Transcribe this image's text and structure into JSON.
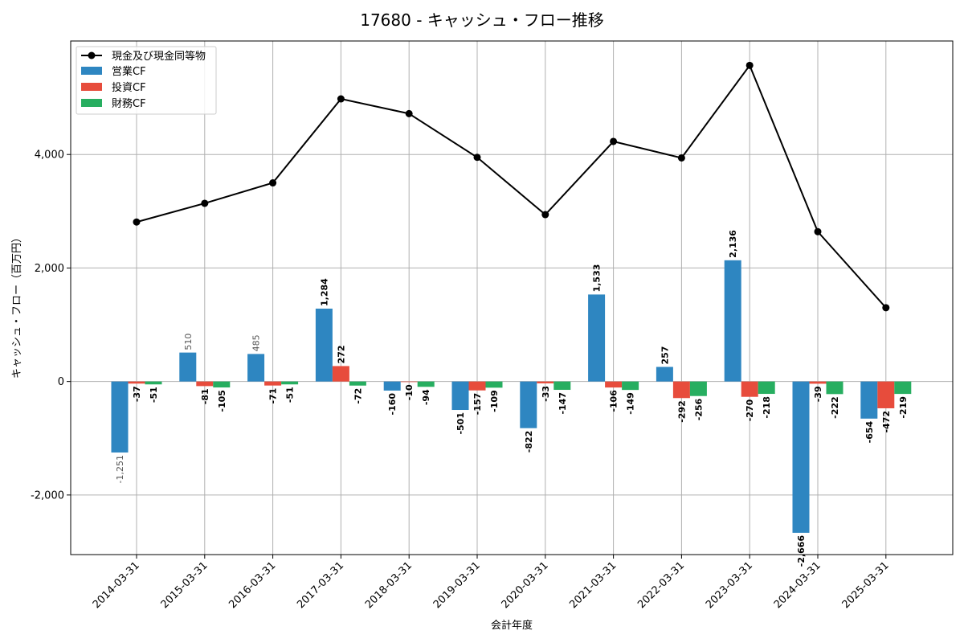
{
  "chart_data": {
    "type": "bar",
    "title": "17680 - キャッシュ・フロー推移",
    "xlabel": "会計年度",
    "ylabel": "キャッシュ・フロー（百万円）",
    "categories": [
      "2014-03-31",
      "2015-03-31",
      "2016-03-31",
      "2017-03-31",
      "2018-03-31",
      "2019-03-31",
      "2020-03-31",
      "2021-03-31",
      "2022-03-31",
      "2023-03-31",
      "2024-03-31",
      "2025-03-31"
    ],
    "ylim": [
      -3050,
      6000
    ],
    "yticks": [
      -2000,
      0,
      2000,
      4000
    ],
    "ytick_labels": [
      "-2,000",
      "0",
      "2,000",
      "4,000"
    ],
    "grid": true,
    "legend_position": "top-left",
    "series": [
      {
        "name": "現金及び現金同等物",
        "kind": "line",
        "color": "#000000",
        "values": [
          2810,
          3140,
          3500,
          4980,
          4720,
          3950,
          2940,
          4230,
          3940,
          5570,
          2640,
          1300
        ]
      },
      {
        "name": "営業CF",
        "kind": "bar",
        "color": "#2e86c1",
        "values": [
          -1251,
          510,
          485,
          1284,
          -160,
          -501,
          -822,
          1533,
          257,
          2136,
          -2666,
          -654
        ],
        "labels": [
          "-1,251",
          "510",
          "485",
          "1,284",
          "-160",
          "-501",
          "-822",
          "1,533",
          "257",
          "2,136",
          "-2,666",
          "-654"
        ]
      },
      {
        "name": "投資CF",
        "kind": "bar",
        "color": "#e74c3c",
        "values": [
          -37,
          -81,
          -71,
          272,
          -10,
          -157,
          -33,
          -106,
          -292,
          -270,
          -39,
          -472
        ],
        "labels": [
          "-37",
          "-81",
          "-71",
          "272",
          "-10",
          "-157",
          "-33",
          "-106",
          "-292",
          "-270",
          "-39",
          "-472"
        ]
      },
      {
        "name": "財務CF",
        "kind": "bar",
        "color": "#27ae60",
        "values": [
          -51,
          -105,
          -51,
          -72,
          -94,
          -109,
          -147,
          -149,
          -256,
          -218,
          -222,
          -219
        ],
        "labels": [
          "-51",
          "-105",
          "-51",
          "-72",
          "-94",
          "-109",
          "-147",
          "-149",
          "-256",
          "-218",
          "-222",
          "-219"
        ]
      }
    ]
  }
}
